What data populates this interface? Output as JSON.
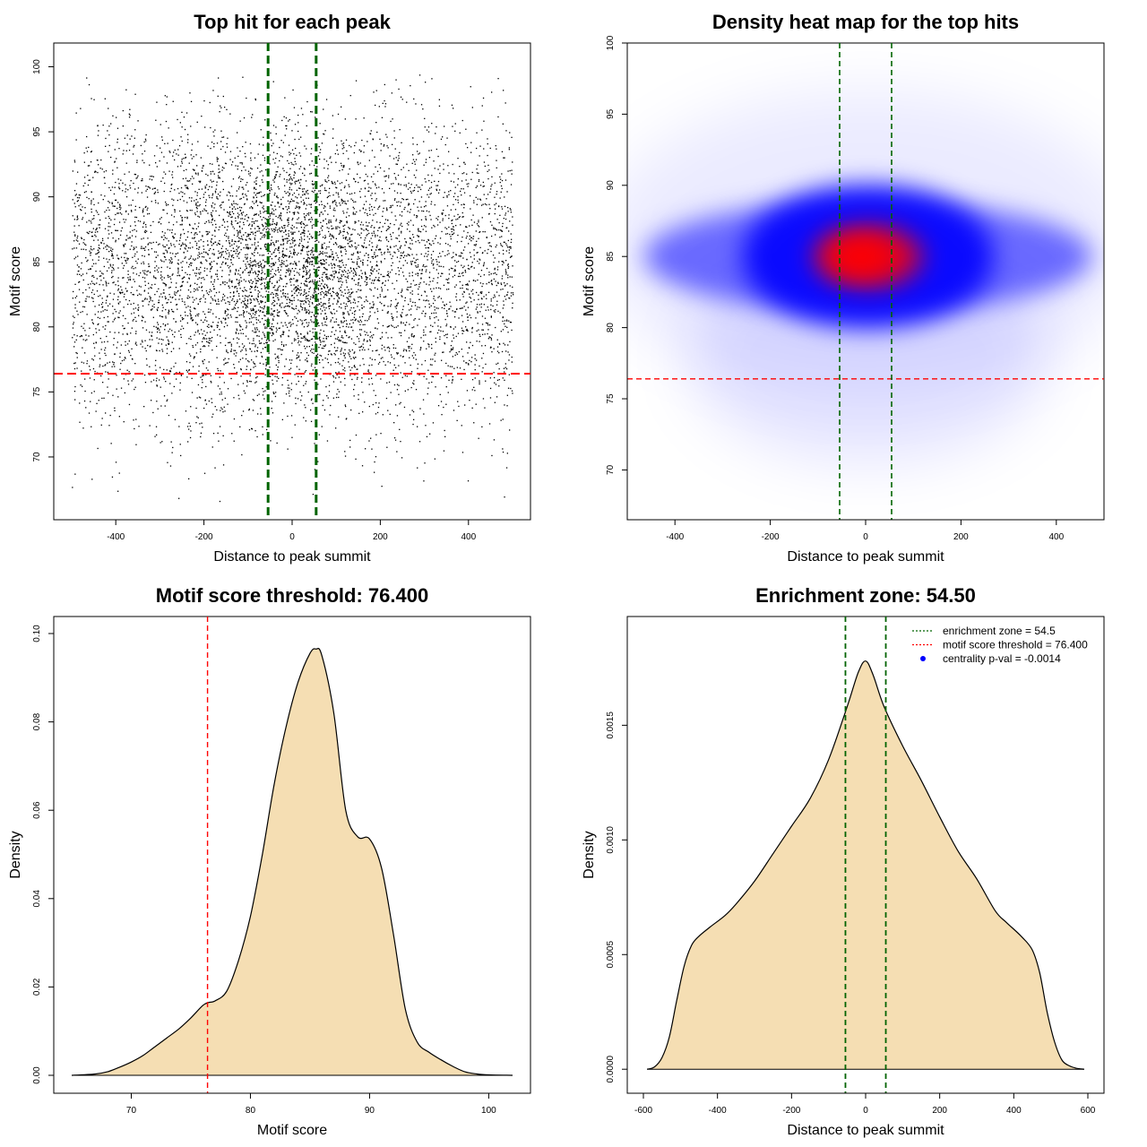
{
  "chart_data": [
    {
      "type": "scatter",
      "title": "Top hit for each peak",
      "xlabel": "Distance to peak summit",
      "ylabel": "Motif score",
      "xlim": [
        -500,
        500
      ],
      "ylim": [
        66,
        101
      ],
      "xticks": [
        "-400",
        "-200",
        "0",
        "200",
        "400"
      ],
      "yticks": [
        "70",
        "75",
        "80",
        "85",
        "90",
        "95",
        "100"
      ],
      "point_color": "#000000",
      "n_points_approx": 7000,
      "point_distribution": {
        "x_range": [
          -500,
          500
        ],
        "y_mean": 84.5,
        "y_sd": 6,
        "y_min": 66.5,
        "y_max": 99.5
      },
      "reference_lines": {
        "vertical_x": [
          -54.5,
          54.5
        ],
        "vertical_color": "#006400",
        "horizontal_y": 76.4,
        "horizontal_color": "#ff0000"
      }
    },
    {
      "type": "heatmap",
      "title": "Density heat map for the top hits",
      "xlabel": "Distance to peak summit",
      "ylabel": "Motif score",
      "xlim": [
        -500,
        500
      ],
      "ylim": [
        66.5,
        100
      ],
      "xticks": [
        "-400",
        "-200",
        "0",
        "200",
        "400"
      ],
      "yticks": [
        "70",
        "75",
        "80",
        "85",
        "90",
        "95",
        "100"
      ],
      "colors": [
        "#ffffff",
        "#0000ff",
        "#ff0000"
      ],
      "peak": {
        "x": 5,
        "y": 85
      },
      "reference_lines": {
        "vertical_x": [
          -54.5,
          54.5
        ],
        "vertical_color": "#006400",
        "horizontal_y": 76.4,
        "horizontal_color": "#ff0000"
      }
    },
    {
      "type": "area",
      "title": "Motif score threshold: 76.400",
      "xlabel": "Motif score",
      "ylabel": "Density",
      "xlim": [
        65,
        102
      ],
      "ylim": [
        0,
        0.1
      ],
      "xticks": [
        "70",
        "80",
        "90",
        "100"
      ],
      "yticks": [
        "0.00",
        "0.02",
        "0.04",
        "0.06",
        "0.08",
        "0.10"
      ],
      "fill_color": "#f5deb3",
      "line_color": "#000000",
      "x": [
        65,
        67,
        68,
        69,
        70,
        71,
        72,
        73,
        74,
        75,
        76,
        76.5,
        77,
        78,
        79,
        80,
        81,
        82,
        83,
        84,
        85,
        85.5,
        86,
        87,
        88,
        89,
        90,
        91,
        92,
        93,
        94,
        95,
        96,
        97,
        98,
        99,
        100,
        102
      ],
      "values": [
        0,
        0.0003,
        0.0008,
        0.0018,
        0.003,
        0.0045,
        0.0065,
        0.0085,
        0.0105,
        0.013,
        0.0158,
        0.0165,
        0.0168,
        0.019,
        0.026,
        0.036,
        0.05,
        0.066,
        0.079,
        0.089,
        0.0955,
        0.0965,
        0.095,
        0.082,
        0.06,
        0.054,
        0.0535,
        0.047,
        0.032,
        0.015,
        0.0075,
        0.0052,
        0.0035,
        0.002,
        0.0008,
        0.0003,
        0.0001,
        0
      ],
      "reference_lines": {
        "vertical_x": [
          76.4
        ],
        "vertical_color": "#ff0000"
      }
    },
    {
      "type": "area",
      "title": "Enrichment zone: 54.50",
      "xlabel": "Distance to peak summit",
      "ylabel": "Density",
      "xlim": [
        -600,
        600
      ],
      "ylim": [
        -5e-05,
        0.0019
      ],
      "xticks": [
        "-600",
        "-400",
        "-200",
        "0",
        "200",
        "400",
        "600"
      ],
      "yticks": [
        "0.0000",
        "0.0005",
        "0.0010",
        "0.0015"
      ],
      "fill_color": "#f5deb3",
      "line_color": "#000000",
      "x": [
        -590,
        -570,
        -550,
        -530,
        -510,
        -490,
        -470,
        -450,
        -420,
        -380,
        -350,
        -300,
        -250,
        -200,
        -150,
        -100,
        -50,
        -20,
        0,
        20,
        50,
        100,
        150,
        200,
        250,
        300,
        350,
        380,
        420,
        450,
        470,
        490,
        510,
        530,
        550,
        570,
        590
      ],
      "values": [
        0,
        1e-05,
        5e-05,
        0.00014,
        0.0003,
        0.00045,
        0.00054,
        0.00058,
        0.00062,
        0.00067,
        0.00072,
        0.00082,
        0.00094,
        0.00106,
        0.00118,
        0.00135,
        0.00158,
        0.00173,
        0.00178,
        0.00172,
        0.00158,
        0.00141,
        0.00126,
        0.0011,
        0.00095,
        0.00083,
        0.00069,
        0.00064,
        0.00058,
        0.00052,
        0.00042,
        0.00025,
        0.00012,
        4e-05,
        1.5e-05,
        4e-06,
        0
      ],
      "reference_lines": {
        "vertical_x": [
          -54.5,
          54.5
        ],
        "vertical_color": "#006400"
      },
      "legend": [
        {
          "label": "enrichment zone = 54.5",
          "color": "#006400",
          "kind": "line"
        },
        {
          "label": "motif score threshold = 76.400",
          "color": "#ff0000",
          "kind": "line"
        },
        {
          "label": "centrality p-val = -0.0014",
          "color": "#0000ff",
          "kind": "point"
        }
      ]
    }
  ]
}
